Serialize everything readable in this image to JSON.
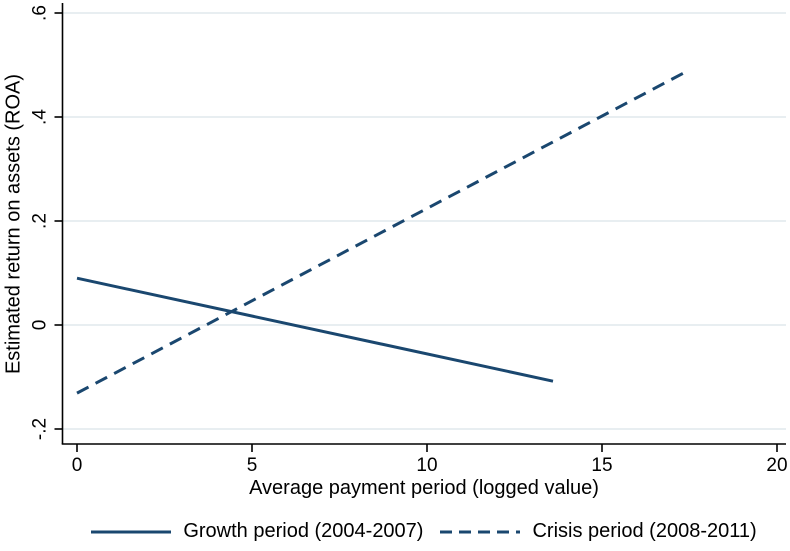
{
  "chart_data": {
    "type": "line",
    "title": "",
    "xlabel": "Average payment period (logged value)",
    "ylabel": "Estimated return on assets (ROA)",
    "xlim": [
      0,
      20
    ],
    "ylim": [
      -0.2,
      0.6
    ],
    "xticks": [
      0,
      5,
      10,
      15,
      20
    ],
    "xtick_labels": [
      "0",
      "5",
      "10",
      "15",
      "20"
    ],
    "yticks": [
      -0.2,
      0,
      0.2,
      0.4,
      0.6
    ],
    "ytick_labels": [
      "-.2",
      "0",
      ".2",
      ".4",
      ".6"
    ],
    "grid": "horizontal-gridlines-only",
    "gridline_color": "#e8eef1",
    "axis_color": "#000000",
    "text_color": "#000000",
    "legend_position": "bottom-center",
    "series": [
      {
        "name": "Growth period (2004-2007)",
        "style": "solid",
        "color": "#1a476f",
        "x": [
          0,
          13.6
        ],
        "y": [
          0.09,
          -0.108
        ]
      },
      {
        "name": "Crisis period (2008-2011)",
        "style": "dashed",
        "color": "#1a476f",
        "x": [
          0,
          17.4
        ],
        "y": [
          -0.131,
          0.487
        ]
      }
    ]
  }
}
